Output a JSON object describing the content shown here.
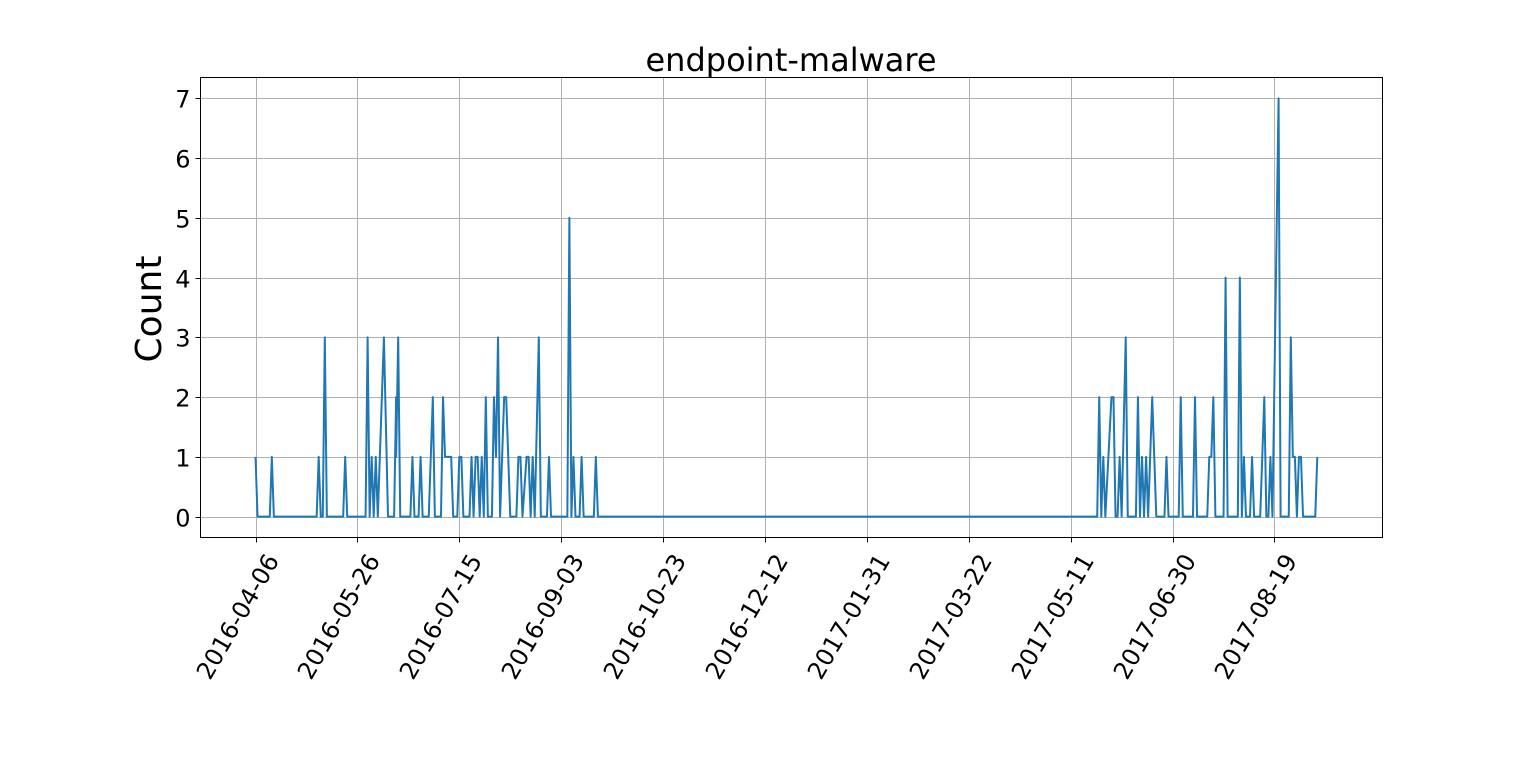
{
  "chart_data": {
    "type": "line",
    "title": "endpoint-malware",
    "xlabel": "",
    "ylabel": "Count",
    "grid": true,
    "line_color": "#1f77b4",
    "xlim": [
      "2016-03-10",
      "2017-10-11"
    ],
    "ylim": [
      -0.35,
      7.35
    ],
    "yticks": [
      0,
      1,
      2,
      3,
      4,
      5,
      6,
      7
    ],
    "xticks": [
      "2016-04-06",
      "2016-05-26",
      "2016-07-15",
      "2016-09-03",
      "2016-10-23",
      "2016-12-12",
      "2017-01-31",
      "2017-03-22",
      "2017-05-11",
      "2017-06-30",
      "2017-08-19"
    ],
    "series": [
      {
        "points": [
          [
            "2016-04-06",
            1
          ],
          [
            "2016-04-07",
            0
          ],
          [
            "2016-04-13",
            0
          ],
          [
            "2016-04-14",
            1
          ],
          [
            "2016-04-15",
            0
          ],
          [
            "2016-05-06",
            0
          ],
          [
            "2016-05-07",
            1
          ],
          [
            "2016-05-08",
            0
          ],
          [
            "2016-05-09",
            0
          ],
          [
            "2016-05-10",
            3
          ],
          [
            "2016-05-11",
            0
          ],
          [
            "2016-05-19",
            0
          ],
          [
            "2016-05-20",
            1
          ],
          [
            "2016-05-21",
            0
          ],
          [
            "2016-05-30",
            0
          ],
          [
            "2016-05-31",
            3
          ],
          [
            "2016-06-01",
            0
          ],
          [
            "2016-06-02",
            1
          ],
          [
            "2016-06-03",
            0
          ],
          [
            "2016-06-04",
            1
          ],
          [
            "2016-06-05",
            0
          ],
          [
            "2016-06-08",
            3
          ],
          [
            "2016-06-10",
            0
          ],
          [
            "2016-06-13",
            0
          ],
          [
            "2016-06-14",
            2
          ],
          [
            "2016-06-14",
            1
          ],
          [
            "2016-06-15",
            3
          ],
          [
            "2016-06-16",
            0
          ],
          [
            "2016-06-21",
            0
          ],
          [
            "2016-06-22",
            1
          ],
          [
            "2016-06-23",
            0
          ],
          [
            "2016-06-25",
            0
          ],
          [
            "2016-06-26",
            1
          ],
          [
            "2016-06-27",
            0
          ],
          [
            "2016-06-30",
            0
          ],
          [
            "2016-07-02",
            2
          ],
          [
            "2016-07-03",
            0
          ],
          [
            "2016-07-06",
            0
          ],
          [
            "2016-07-07",
            2
          ],
          [
            "2016-07-08",
            1
          ],
          [
            "2016-07-10",
            1
          ],
          [
            "2016-07-11",
            1
          ],
          [
            "2016-07-12",
            0
          ],
          [
            "2016-07-14",
            0
          ],
          [
            "2016-07-15",
            1
          ],
          [
            "2016-07-16",
            1
          ],
          [
            "2016-07-17",
            0
          ],
          [
            "2016-07-20",
            0
          ],
          [
            "2016-07-21",
            1
          ],
          [
            "2016-07-22",
            0
          ],
          [
            "2016-07-23",
            1
          ],
          [
            "2016-07-24",
            1
          ],
          [
            "2016-07-25",
            0
          ],
          [
            "2016-07-26",
            1
          ],
          [
            "2016-07-27",
            0
          ],
          [
            "2016-07-28",
            2
          ],
          [
            "2016-07-29",
            0
          ],
          [
            "2016-07-31",
            0
          ],
          [
            "2016-08-01",
            2
          ],
          [
            "2016-08-02",
            1
          ],
          [
            "2016-08-03",
            3
          ],
          [
            "2016-08-04",
            0
          ],
          [
            "2016-08-06",
            2
          ],
          [
            "2016-08-07",
            2
          ],
          [
            "2016-08-09",
            0
          ],
          [
            "2016-08-12",
            0
          ],
          [
            "2016-08-13",
            1
          ],
          [
            "2016-08-14",
            1
          ],
          [
            "2016-08-15",
            0
          ],
          [
            "2016-08-17",
            1
          ],
          [
            "2016-08-18",
            1
          ],
          [
            "2016-08-19",
            0
          ],
          [
            "2016-08-20",
            1
          ],
          [
            "2016-08-21",
            0
          ],
          [
            "2016-08-23",
            3
          ],
          [
            "2016-08-24",
            0
          ],
          [
            "2016-08-27",
            0
          ],
          [
            "2016-08-28",
            1
          ],
          [
            "2016-08-29",
            0
          ],
          [
            "2016-09-02",
            0
          ],
          [
            "2016-09-06",
            0
          ],
          [
            "2016-09-07",
            5
          ],
          [
            "2016-09-08",
            0
          ],
          [
            "2016-09-09",
            1
          ],
          [
            "2016-09-10",
            0
          ],
          [
            "2016-09-12",
            0
          ],
          [
            "2016-09-13",
            1
          ],
          [
            "2016-09-14",
            0
          ],
          [
            "2016-09-19",
            0
          ],
          [
            "2016-09-20",
            1
          ],
          [
            "2016-09-21",
            0
          ],
          [
            "2017-05-24",
            0
          ],
          [
            "2017-05-25",
            2
          ],
          [
            "2017-05-26",
            0
          ],
          [
            "2017-05-27",
            1
          ],
          [
            "2017-05-28",
            0
          ],
          [
            "2017-05-31",
            2
          ],
          [
            "2017-06-01",
            2
          ],
          [
            "2017-06-02",
            0
          ],
          [
            "2017-06-03",
            0
          ],
          [
            "2017-06-04",
            1
          ],
          [
            "2017-06-05",
            0
          ],
          [
            "2017-06-07",
            3
          ],
          [
            "2017-06-08",
            0
          ],
          [
            "2017-06-12",
            0
          ],
          [
            "2017-06-13",
            2
          ],
          [
            "2017-06-14",
            0
          ],
          [
            "2017-06-15",
            1
          ],
          [
            "2017-06-16",
            0
          ],
          [
            "2017-06-17",
            1
          ],
          [
            "2017-06-18",
            0
          ],
          [
            "2017-06-20",
            2
          ],
          [
            "2017-06-21",
            1
          ],
          [
            "2017-06-22",
            0
          ],
          [
            "2017-06-26",
            0
          ],
          [
            "2017-06-27",
            1
          ],
          [
            "2017-06-28",
            0
          ],
          [
            "2017-07-03",
            0
          ],
          [
            "2017-07-04",
            2
          ],
          [
            "2017-07-05",
            0
          ],
          [
            "2017-07-10",
            0
          ],
          [
            "2017-07-11",
            2
          ],
          [
            "2017-07-12",
            0
          ],
          [
            "2017-07-17",
            0
          ],
          [
            "2017-07-18",
            1
          ],
          [
            "2017-07-19",
            1
          ],
          [
            "2017-07-20",
            2
          ],
          [
            "2017-07-21",
            0
          ],
          [
            "2017-07-25",
            0
          ],
          [
            "2017-07-26",
            4
          ],
          [
            "2017-07-27",
            0
          ],
          [
            "2017-08-01",
            0
          ],
          [
            "2017-08-02",
            4
          ],
          [
            "2017-08-03",
            0
          ],
          [
            "2017-08-04",
            1
          ],
          [
            "2017-08-05",
            0
          ],
          [
            "2017-08-07",
            0
          ],
          [
            "2017-08-08",
            1
          ],
          [
            "2017-08-09",
            0
          ],
          [
            "2017-08-12",
            0
          ],
          [
            "2017-08-13",
            1
          ],
          [
            "2017-08-14",
            2
          ],
          [
            "2017-08-15",
            0
          ],
          [
            "2017-08-16",
            0
          ],
          [
            "2017-08-17",
            1
          ],
          [
            "2017-08-18",
            0
          ],
          [
            "2017-08-21",
            7
          ],
          [
            "2017-08-22",
            0
          ],
          [
            "2017-08-26",
            0
          ],
          [
            "2017-08-27",
            3
          ],
          [
            "2017-08-28",
            1
          ],
          [
            "2017-08-29",
            1
          ],
          [
            "2017-08-30",
            0
          ],
          [
            "2017-08-31",
            1
          ],
          [
            "2017-09-01",
            1
          ],
          [
            "2017-09-02",
            0
          ],
          [
            "2017-09-08",
            0
          ],
          [
            "2017-09-09",
            1
          ]
        ]
      }
    ]
  }
}
